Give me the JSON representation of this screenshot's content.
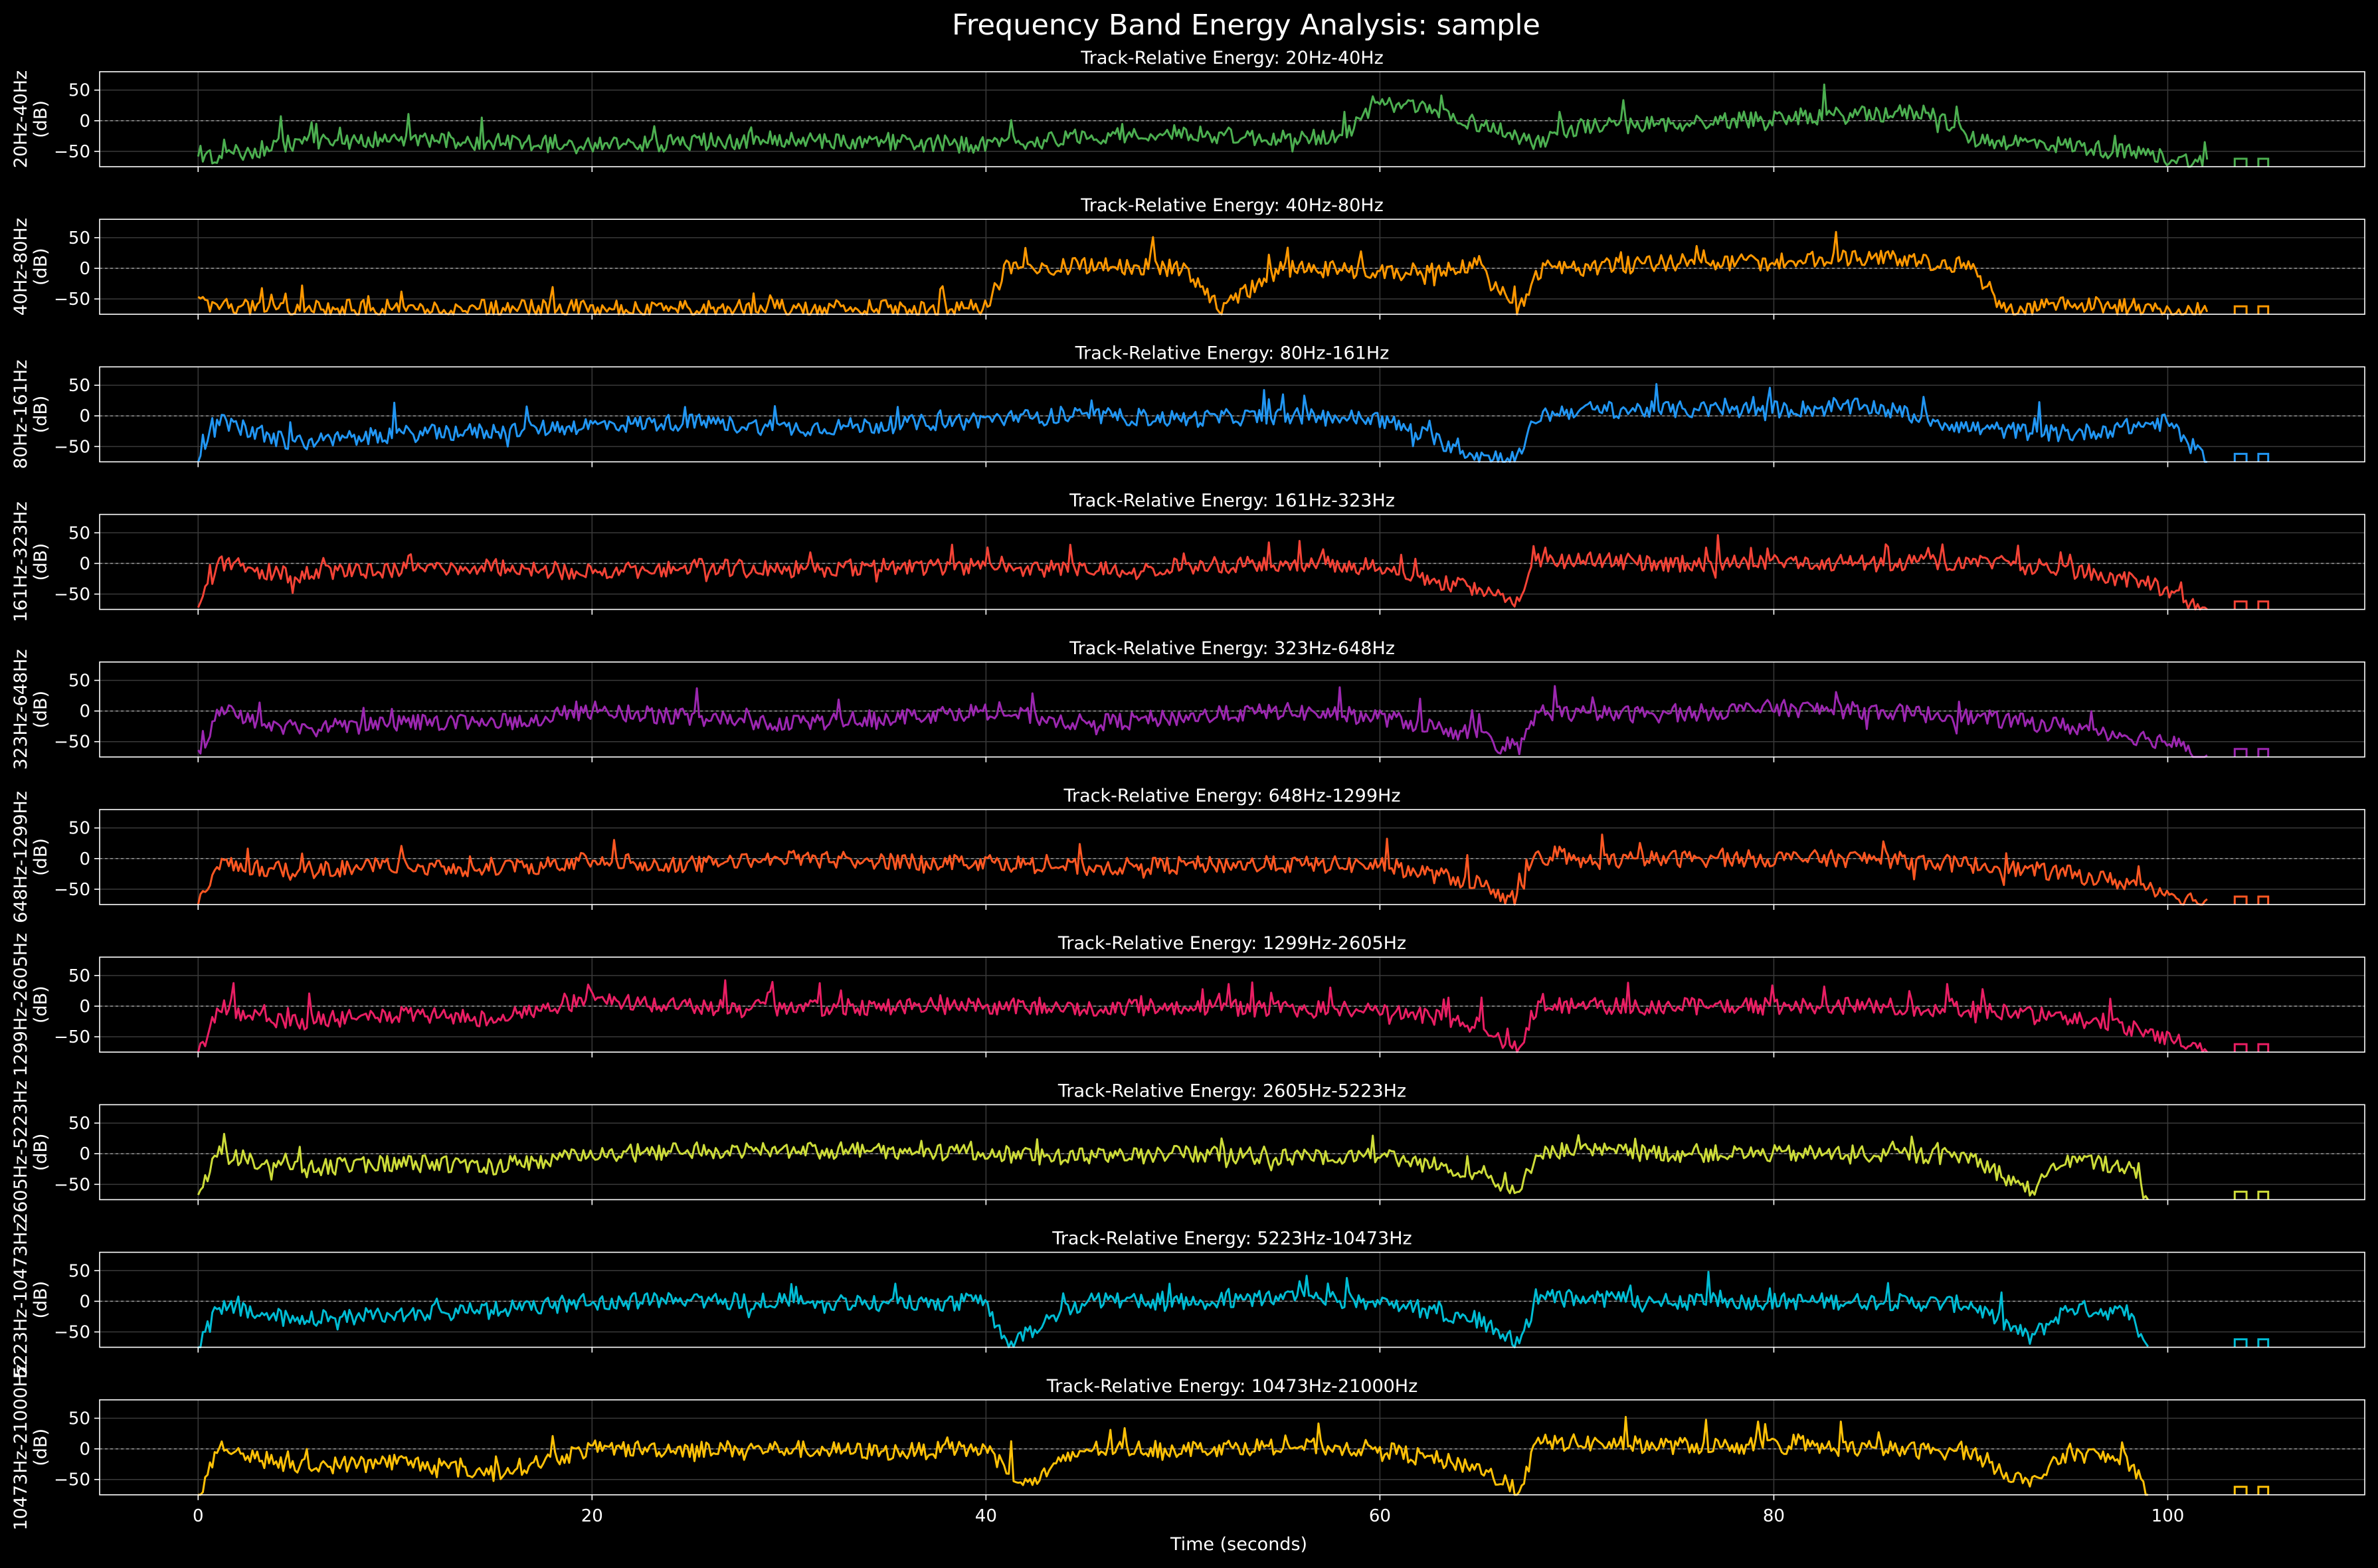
{
  "figure": {
    "title": "Frequency Band Energy Analysis: sample",
    "background": "#000000",
    "axis_color": "#ffffff",
    "grid_color": "#3a3a3a"
  },
  "chart_data": {
    "type": "line",
    "xlabel": "Time (seconds)",
    "xlim": [
      -5,
      110
    ],
    "xticks": [
      0,
      20,
      40,
      60,
      80,
      100
    ],
    "ylim": [
      -75,
      80
    ],
    "yticks": [
      50,
      0,
      -50
    ],
    "zero_reference_line": true,
    "grid": true,
    "bands": [
      {
        "title": "Track-Relative Energy: 20Hz-40Hz",
        "ylabel": "20Hz-40Hz",
        "yunit": "(dB)",
        "color": "#4caf50",
        "x": [
          0,
          5,
          10,
          15,
          20,
          25,
          30,
          35,
          40,
          45,
          50,
          55,
          58,
          60,
          62,
          65,
          68,
          70,
          75,
          80,
          85,
          88,
          90,
          95,
          100,
          102
        ],
        "y": [
          -65,
          -35,
          -30,
          -35,
          -40,
          -35,
          -30,
          -35,
          -40,
          -25,
          -20,
          -30,
          -25,
          25,
          22,
          -5,
          -35,
          -10,
          -5,
          5,
          10,
          15,
          -30,
          -40,
          -60,
          -70
        ]
      },
      {
        "title": "Track-Relative Energy: 40Hz-80Hz",
        "ylabel": "40Hz-80Hz",
        "yunit": "(dB)",
        "color": "#ff9800",
        "x": [
          0,
          5,
          10,
          15,
          20,
          25,
          30,
          35,
          40,
          41,
          45,
          50,
          52,
          55,
          60,
          65,
          67,
          68,
          70,
          75,
          80,
          85,
          90,
          92,
          95,
          98,
          100,
          102
        ],
        "y": [
          -60,
          -65,
          -65,
          -65,
          -65,
          -65,
          -65,
          -65,
          -65,
          0,
          5,
          0,
          -65,
          0,
          -5,
          0,
          -70,
          -5,
          0,
          10,
          10,
          20,
          0,
          -70,
          -55,
          -65,
          -70,
          -70
        ]
      },
      {
        "title": "Track-Relative Energy: 80Hz-161Hz",
        "ylabel": "80Hz-161Hz",
        "yunit": "(dB)",
        "color": "#2196f3",
        "x": [
          0,
          1,
          5,
          10,
          15,
          20,
          25,
          30,
          35,
          40,
          45,
          50,
          55,
          60,
          65,
          67,
          68,
          70,
          75,
          80,
          85,
          90,
          95,
          100,
          102
        ],
        "y": [
          -75,
          -10,
          -45,
          -30,
          -25,
          -15,
          -10,
          -20,
          -15,
          -5,
          0,
          -5,
          0,
          -5,
          -65,
          -70,
          0,
          10,
          10,
          10,
          15,
          -20,
          -30,
          -10,
          -75
        ]
      },
      {
        "title": "Track-Relative Energy: 161Hz-323Hz",
        "ylabel": "161Hz-323Hz",
        "yunit": "(dB)",
        "color": "#f44336",
        "x": [
          0,
          1,
          5,
          10,
          15,
          20,
          25,
          30,
          35,
          40,
          45,
          50,
          55,
          60,
          65,
          67,
          68,
          70,
          75,
          80,
          85,
          90,
          95,
          99,
          102
        ],
        "y": [
          -75,
          0,
          -20,
          -10,
          -5,
          -15,
          -5,
          -10,
          -5,
          -5,
          -10,
          -5,
          0,
          -5,
          -45,
          -60,
          0,
          5,
          0,
          5,
          0,
          0,
          -10,
          -30,
          -75
        ]
      },
      {
        "title": "Track-Relative Energy: 323Hz-648Hz",
        "ylabel": "323Hz-648Hz",
        "yunit": "(dB)",
        "color": "#9c27b0",
        "x": [
          0,
          1,
          5,
          10,
          15,
          20,
          25,
          30,
          35,
          40,
          45,
          50,
          55,
          60,
          65,
          67,
          68,
          70,
          75,
          80,
          85,
          90,
          95,
          100,
          102
        ],
        "y": [
          -75,
          0,
          -30,
          -20,
          -20,
          0,
          -10,
          -20,
          -10,
          0,
          -20,
          -10,
          0,
          -10,
          -40,
          -70,
          0,
          -5,
          -5,
          5,
          0,
          -10,
          -25,
          -50,
          -75
        ]
      },
      {
        "title": "Track-Relative Energy: 648Hz-1299Hz",
        "ylabel": "648Hz-1299Hz",
        "yunit": "(dB)",
        "color": "#ff5722",
        "x": [
          0,
          1,
          5,
          10,
          15,
          20,
          25,
          30,
          35,
          40,
          45,
          50,
          55,
          60,
          65,
          67,
          68,
          70,
          75,
          80,
          85,
          90,
          95,
          99,
          102
        ],
        "y": [
          -75,
          -10,
          -20,
          -10,
          -20,
          0,
          -10,
          0,
          -5,
          -5,
          -15,
          -10,
          -10,
          -10,
          -40,
          -70,
          5,
          -5,
          0,
          0,
          0,
          -10,
          -25,
          -45,
          -75
        ]
      },
      {
        "title": "Track-Relative Energy: 1299Hz-2605Hz",
        "ylabel": "1299Hz-2605Hz",
        "yunit": "(dB)",
        "color": "#e91e63",
        "x": [
          0,
          1,
          5,
          10,
          15,
          20,
          25,
          30,
          35,
          40,
          45,
          50,
          55,
          60,
          65,
          67,
          68,
          70,
          75,
          80,
          85,
          90,
          95,
          99,
          102
        ],
        "y": [
          -75,
          -10,
          -25,
          -15,
          -20,
          10,
          0,
          -5,
          0,
          0,
          -5,
          0,
          -5,
          -5,
          -30,
          -70,
          5,
          0,
          0,
          0,
          0,
          -5,
          -20,
          -40,
          -75
        ]
      },
      {
        "title": "Track-Relative Energy: 2605Hz-5223Hz",
        "ylabel": "2605Hz-5223Hz",
        "yunit": "(dB)",
        "color": "#cddc39",
        "x": [
          0,
          1,
          5,
          10,
          15,
          20,
          25,
          30,
          35,
          40,
          45,
          50,
          55,
          60,
          65,
          67,
          68,
          70,
          75,
          80,
          85,
          90,
          93,
          95,
          98,
          99
        ],
        "y": [
          -75,
          0,
          -25,
          -15,
          -20,
          0,
          5,
          5,
          5,
          0,
          -5,
          0,
          -5,
          -5,
          -30,
          -70,
          5,
          5,
          0,
          0,
          0,
          -5,
          -60,
          -10,
          -20,
          -75
        ]
      },
      {
        "title": "Track-Relative Energy: 5223Hz-10473Hz",
        "ylabel": "5223Hz-10473Hz",
        "yunit": "(dB)",
        "color": "#00bcd4",
        "x": [
          0,
          1,
          5,
          10,
          15,
          20,
          25,
          30,
          35,
          40,
          41,
          45,
          50,
          55,
          60,
          65,
          67,
          68,
          70,
          75,
          80,
          85,
          90,
          93,
          95,
          98,
          99
        ],
        "y": [
          -75,
          -10,
          -30,
          -20,
          -15,
          0,
          0,
          0,
          -5,
          0,
          -70,
          0,
          0,
          5,
          0,
          -30,
          -70,
          5,
          5,
          0,
          0,
          0,
          -5,
          -60,
          -10,
          -20,
          -75
        ]
      },
      {
        "title": "Track-Relative Energy: 10473Hz-21000Hz",
        "ylabel": "10473Hz-21000Hz",
        "yunit": "(dB)",
        "color": "#ffc107",
        "x": [
          0,
          1,
          5,
          10,
          15,
          20,
          25,
          30,
          35,
          40,
          42,
          45,
          50,
          55,
          60,
          65,
          67,
          68,
          70,
          75,
          80,
          85,
          90,
          93,
          95,
          98,
          99
        ],
        "y": [
          -75,
          0,
          -30,
          -20,
          -40,
          0,
          0,
          0,
          -5,
          0,
          -60,
          0,
          0,
          5,
          0,
          -30,
          -70,
          10,
          10,
          5,
          5,
          0,
          -5,
          -60,
          -5,
          -20,
          -75
        ]
      }
    ]
  }
}
